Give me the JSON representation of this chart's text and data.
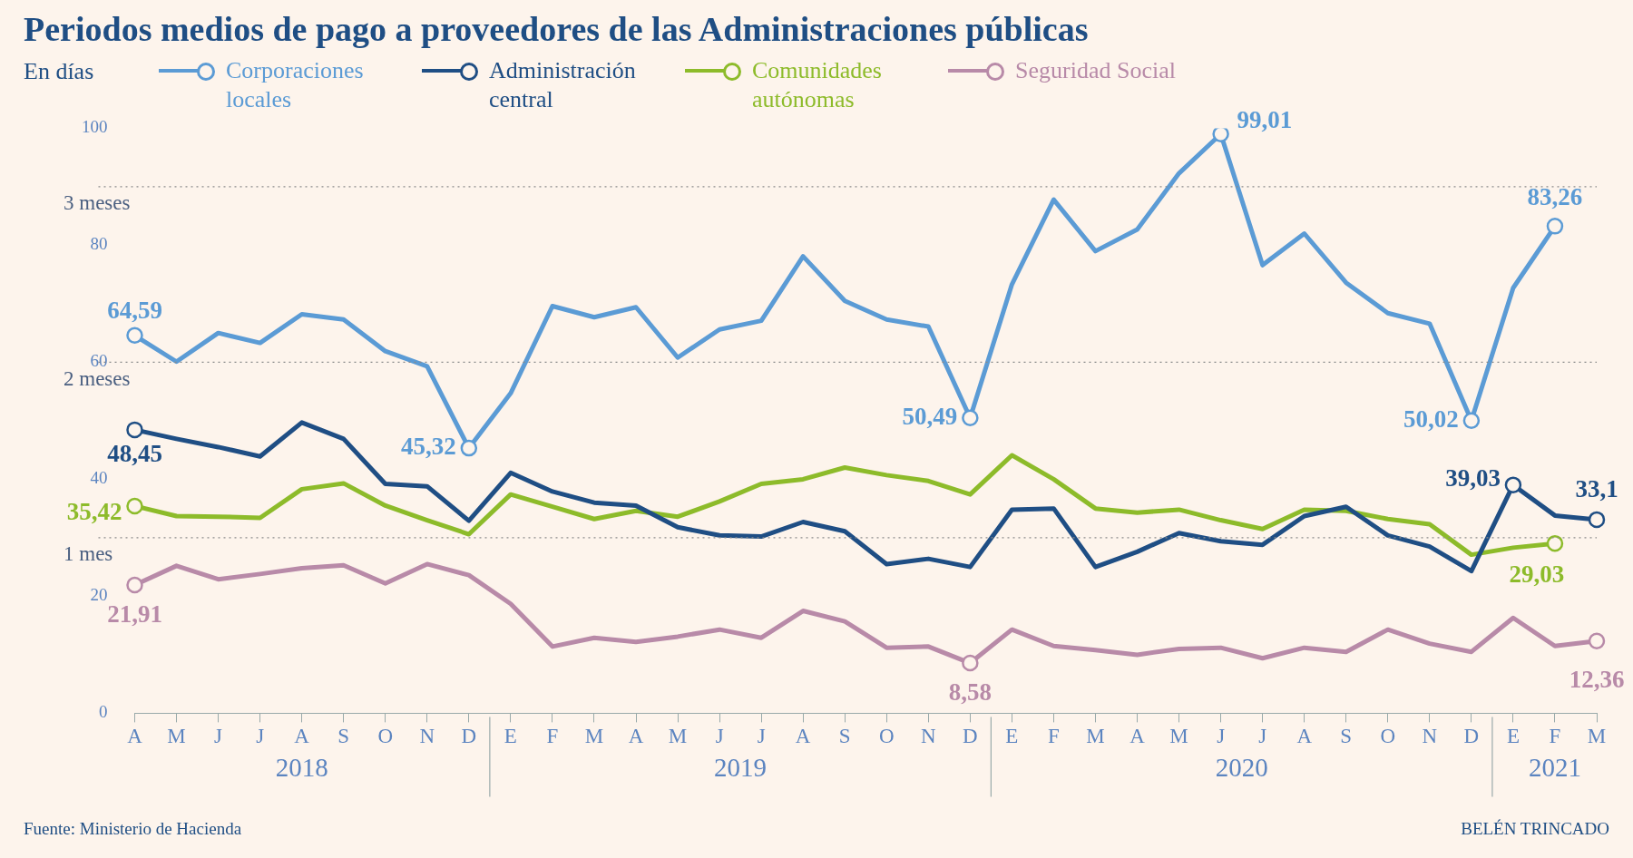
{
  "chart_data": {
    "type": "line",
    "title": "Periodos medios de pago a proveedores de las Administraciones públicas",
    "ylabel": "En días",
    "categories": [
      "A",
      "M",
      "J",
      "J",
      "A",
      "S",
      "O",
      "N",
      "D",
      "E",
      "F",
      "M",
      "A",
      "M",
      "J",
      "J",
      "A",
      "S",
      "O",
      "N",
      "D",
      "E",
      "F",
      "M",
      "A",
      "M",
      "J",
      "J",
      "A",
      "S",
      "O",
      "N",
      "D",
      "E",
      "F",
      "M"
    ],
    "ylim": [
      0,
      100
    ],
    "yticks": [
      0,
      20,
      40,
      60,
      80,
      100
    ],
    "grid": false,
    "legend": "top left",
    "line_style": "solid",
    "series": [
      {
        "name": "Corporaciones locales",
        "color": "#5b9bd5",
        "values": [
          64.59,
          60.1,
          65.0,
          63.3,
          68.2,
          67.3,
          61.9,
          59.3,
          45.32,
          54.7,
          69.6,
          67.7,
          69.4,
          60.8,
          65.6,
          67.1,
          78.1,
          70.5,
          67.3,
          66.1,
          50.49,
          73.3,
          87.8,
          79.0,
          82.7,
          92.3,
          99.01,
          76.6,
          82.0,
          73.6,
          68.4,
          66.6,
          50.02,
          72.7,
          83.26,
          null
        ],
        "value_labels": [
          "64,59",
          null,
          null,
          null,
          null,
          null,
          null,
          null,
          "45,32",
          null,
          null,
          null,
          null,
          null,
          null,
          null,
          null,
          null,
          null,
          null,
          "50,49",
          null,
          null,
          null,
          null,
          null,
          "99,01",
          null,
          null,
          null,
          null,
          null,
          "50,02",
          null,
          "83,26",
          null
        ]
      },
      {
        "name": "Administración central",
        "color": "#1f4e84",
        "values": [
          48.45,
          46.9,
          45.5,
          43.9,
          49.7,
          46.9,
          39.2,
          38.8,
          32.9,
          41.1,
          37.9,
          36.0,
          35.5,
          31.8,
          30.4,
          30.2,
          32.7,
          31.1,
          25.5,
          26.4,
          25.0,
          34.8,
          35.0,
          25.0,
          27.6,
          30.8,
          29.4,
          28.8,
          33.7,
          35.3,
          30.4,
          28.5,
          24.3,
          39.03,
          33.8,
          33.1
        ],
        "value_labels": [
          "48,45",
          null,
          null,
          null,
          null,
          null,
          null,
          null,
          null,
          null,
          null,
          null,
          null,
          null,
          null,
          null,
          null,
          null,
          null,
          null,
          null,
          null,
          null,
          null,
          null,
          null,
          null,
          null,
          null,
          null,
          null,
          null,
          null,
          "39,03",
          null,
          "33,1"
        ]
      },
      {
        "name": "Comunidades autónomas",
        "color": "#8dbb2a",
        "values": [
          35.42,
          33.7,
          33.6,
          33.4,
          38.3,
          39.3,
          35.5,
          33.0,
          30.6,
          37.4,
          35.3,
          33.2,
          34.6,
          33.6,
          36.2,
          39.2,
          40.0,
          42.0,
          40.7,
          39.7,
          37.4,
          44.1,
          40.0,
          35.0,
          34.3,
          34.8,
          33.0,
          31.5,
          34.8,
          34.6,
          33.2,
          32.3,
          27.1,
          28.3,
          29.03,
          null
        ],
        "value_labels": [
          "35,42",
          null,
          null,
          null,
          null,
          null,
          null,
          null,
          null,
          null,
          null,
          null,
          null,
          null,
          null,
          null,
          null,
          null,
          null,
          null,
          null,
          null,
          null,
          null,
          null,
          null,
          null,
          null,
          null,
          null,
          null,
          null,
          null,
          null,
          "29,03",
          null
        ]
      },
      {
        "name": "Seguridad Social",
        "color": "#b88aa8",
        "values": [
          21.91,
          25.2,
          22.9,
          23.8,
          24.8,
          25.3,
          22.2,
          25.5,
          23.6,
          18.7,
          11.4,
          12.9,
          12.2,
          13.1,
          14.3,
          12.9,
          17.5,
          15.7,
          11.2,
          11.4,
          8.58,
          14.3,
          11.5,
          10.8,
          10.0,
          11.0,
          11.2,
          9.4,
          11.2,
          10.5,
          14.3,
          11.9,
          10.5,
          16.3,
          11.5,
          12.36
        ],
        "value_labels": [
          "21,91",
          null,
          null,
          null,
          null,
          null,
          null,
          null,
          null,
          null,
          null,
          null,
          null,
          null,
          null,
          null,
          null,
          null,
          null,
          null,
          "8,58",
          null,
          null,
          null,
          null,
          null,
          null,
          null,
          null,
          null,
          null,
          null,
          null,
          null,
          null,
          "12,36"
        ]
      }
    ],
    "ref_lines": [
      {
        "axis": "y",
        "value": 90,
        "label": "3 meses",
        "line_style": "dotted"
      },
      {
        "axis": "y",
        "value": 60,
        "label": "2 meses",
        "line_style": "dotted"
      },
      {
        "axis": "y",
        "value": 30,
        "label": "1 mes",
        "line_style": "dotted"
      }
    ],
    "annotations": [
      "2018",
      "2019",
      "2020",
      "2021",
      "Fuente: Ministerio de Hacienda",
      "BELÉN TRINCADO"
    ]
  }
}
